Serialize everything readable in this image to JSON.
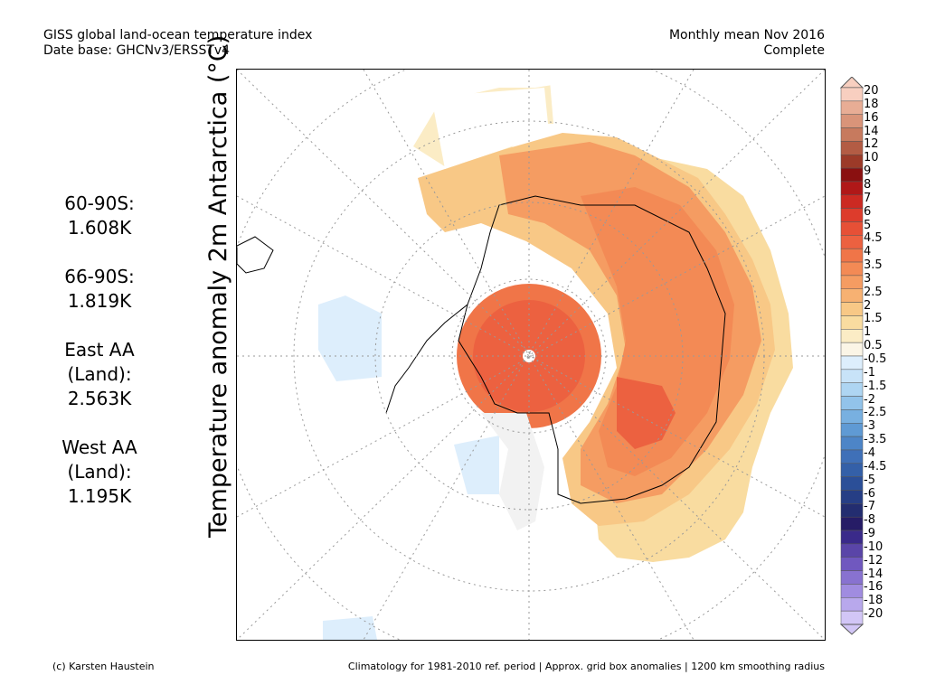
{
  "header": {
    "left_line1": "GISS global land-ocean temperature index",
    "left_line2": "Date base: GHCNv3/ERSSTv4",
    "right_line1": "Monthly mean Nov 2016",
    "right_line2": "Complete"
  },
  "vertical_label": "Temperature anomaly 2m Antarctica (°C)",
  "stats": [
    {
      "label": "60-90S:",
      "value": "1.608K"
    },
    {
      "label": "66-90S:",
      "value": "1.819K"
    },
    {
      "label": "East AA\n(Land):",
      "value": "2.563K"
    },
    {
      "label": "West AA\n(Land):",
      "value": "1.195K"
    }
  ],
  "colorbar": {
    "labels": [
      "20",
      "18",
      "16",
      "14",
      "12",
      "10",
      "9",
      "8",
      "7",
      "6",
      "5",
      "4.5",
      "4",
      "3.5",
      "3",
      "2.5",
      "2",
      "1.5",
      "1",
      "0.5",
      "-0.5",
      "-1",
      "-1.5",
      "-2",
      "-2.5",
      "-3",
      "-3.5",
      "-4",
      "-4.5",
      "-5",
      "-6",
      "-7",
      "-8",
      "-9",
      "-10",
      "-12",
      "-14",
      "-16",
      "-18",
      "-20"
    ],
    "colors": [
      "#f8cfc0",
      "#e8ad95",
      "#d99479",
      "#c77a5e",
      "#b35c44",
      "#9c3a28",
      "#8a1010",
      "#b01818",
      "#cc2a22",
      "#dd3c2c",
      "#e65036",
      "#ec6140",
      "#f07548",
      "#f38a55",
      "#f59c62",
      "#f7b172",
      "#f8c886",
      "#f9dca0",
      "#fbecc5",
      "#fbf5e6",
      "#ddeefc",
      "#c8e3f8",
      "#aed5f2",
      "#92c3ea",
      "#78b0e0",
      "#5f9ad4",
      "#4d85c7",
      "#3f70b8",
      "#3460a8",
      "#2b4f98",
      "#263e85",
      "#232d70",
      "#261c66",
      "#3a2a8a",
      "#5a45a8",
      "#7058bf",
      "#8872d0",
      "#a08ce0",
      "#b8a8ec",
      "#d2c6f6"
    ]
  },
  "footer": {
    "left": "(c) Karsten Haustein",
    "right": "Climatology for 1981-2010 ref. period | Approx. grid box anomalies | 1200 km smoothing radius"
  }
}
